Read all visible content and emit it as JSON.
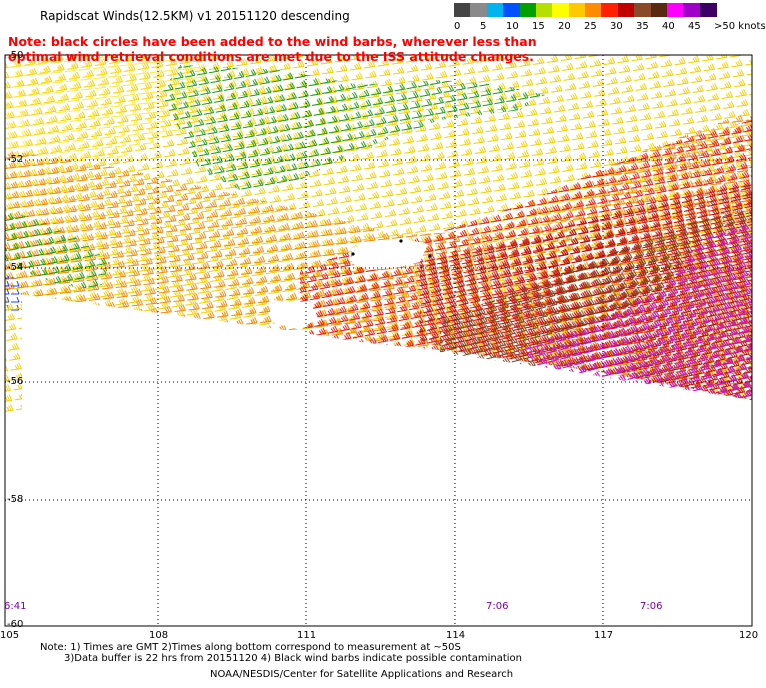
{
  "title": "Rapidscat Winds(12.5KM) v1 20151120 descending",
  "note_line1": "Note: black circles have been added to the wind barbs, wherever less than",
  "note_line2": "optimal wind retrieval conditions are met due to the ISS attitude changes.",
  "color_scale": {
    "colors": [
      "#444444",
      "#8a8a8a",
      "#00b4f0",
      "#0050ff",
      "#00a000",
      "#b4e000",
      "#ffff00",
      "#ffc800",
      "#ff8c00",
      "#ff2000",
      "#c00000",
      "#8a4a2a",
      "#5a2a10",
      "#ff00ff",
      "#a000c8",
      "#3c0064"
    ],
    "labels": [
      "0",
      "5",
      "10",
      "15",
      "20",
      "25",
      "30",
      "35",
      "40",
      "45",
      ">50 knots"
    ]
  },
  "y_ticks": [
    "-50",
    "-52",
    "-54",
    "-56",
    "-58",
    "-60"
  ],
  "x_ticks": [
    "105",
    "108",
    "111",
    "114",
    "117",
    "120"
  ],
  "time_labels": [
    "6:41",
    "7:06",
    "7:06"
  ],
  "footnote_line1": "Note: 1) Times are GMT 2)Times along bottom correspond to measurement at ~50S",
  "footnote_line2": "3)Data buffer is 22 hrs from 20151120 4) Black wind barbs indicate possible contamination",
  "credit": "NOAA/NESDIS/Center for Satellite Applications and Research"
}
